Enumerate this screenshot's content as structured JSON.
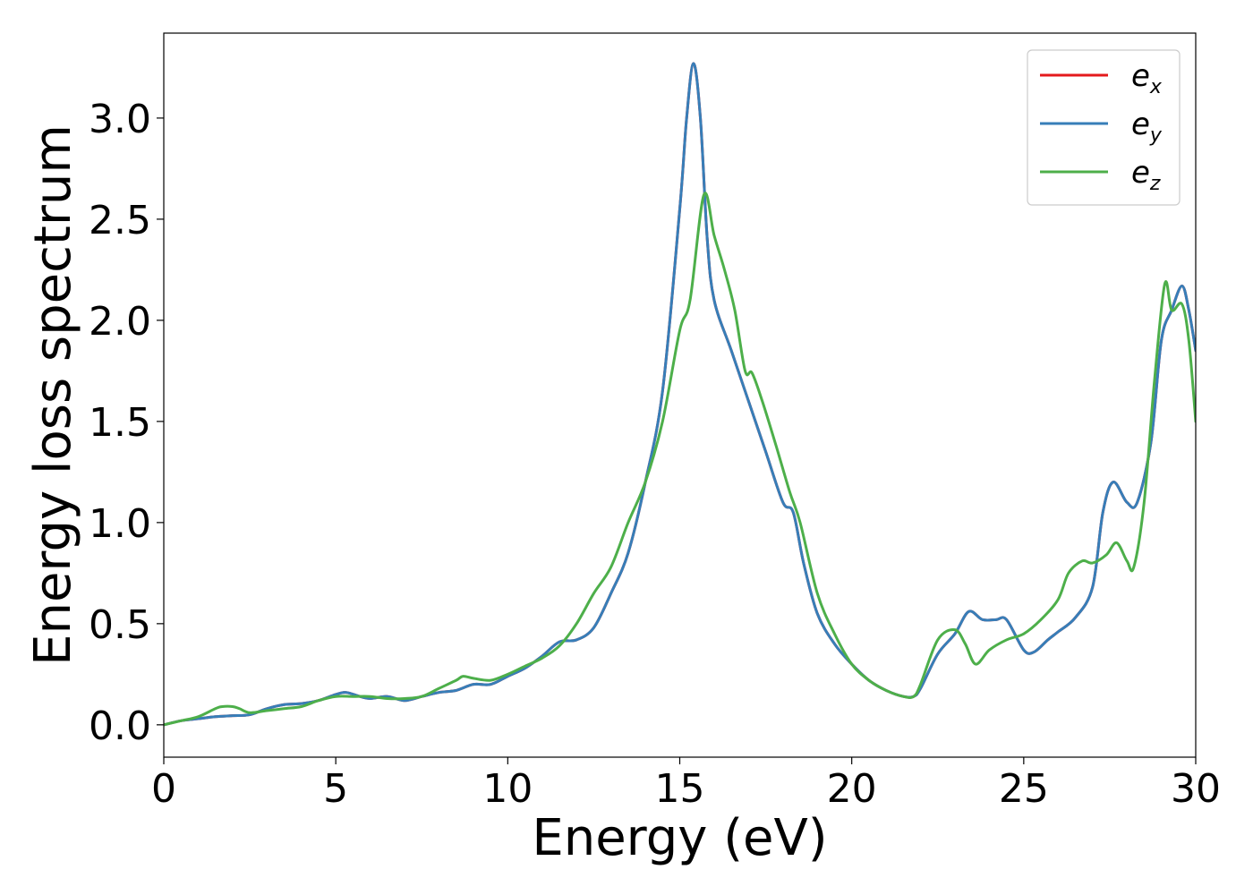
{
  "chart_data": {
    "type": "line",
    "title": "",
    "xlabel": "Energy (eV)",
    "ylabel": "Energy loss spectrum",
    "xlim": [
      0,
      30
    ],
    "ylim": [
      -0.16,
      3.42
    ],
    "xticks": [
      0,
      5,
      10,
      15,
      20,
      25,
      30
    ],
    "xtick_labels": [
      "0",
      "5",
      "10",
      "15",
      "20",
      "25",
      "30"
    ],
    "yticks": [
      0.0,
      0.5,
      1.0,
      1.5,
      2.0,
      2.5,
      3.0
    ],
    "ytick_labels": [
      "0.0",
      "0.5",
      "1.0",
      "1.5",
      "2.0",
      "2.5",
      "3.0"
    ],
    "grid": false,
    "legend_position": "top-right",
    "series": [
      {
        "name": "e_x",
        "legend_base": "e",
        "legend_sub": "x",
        "color": "#e41a1c",
        "x": [
          0,
          0.5,
          1,
          1.5,
          2,
          2.5,
          3,
          3.5,
          4,
          4.5,
          5,
          5.3,
          5.7,
          6,
          6.5,
          7,
          7.5,
          8,
          8.5,
          9,
          9.5,
          10,
          10.5,
          11,
          11.5,
          12,
          12.5,
          13,
          13.5,
          14,
          14.5,
          15,
          15.2,
          15.4,
          15.6,
          15.8,
          16,
          16.5,
          17,
          17.5,
          18,
          18.3,
          18.6,
          19,
          19.5,
          20,
          20.5,
          21,
          21.5,
          21.8,
          22,
          22.5,
          23,
          23.4,
          23.8,
          24.2,
          24.5,
          25,
          25.3,
          25.7,
          26,
          26.5,
          27,
          27.3,
          27.6,
          28,
          28.3,
          28.7,
          29,
          29.3,
          29.6,
          29.8,
          30
        ],
        "y": [
          0,
          0.02,
          0.03,
          0.04,
          0.045,
          0.05,
          0.08,
          0.1,
          0.105,
          0.12,
          0.15,
          0.16,
          0.14,
          0.13,
          0.14,
          0.12,
          0.14,
          0.16,
          0.17,
          0.2,
          0.2,
          0.24,
          0.28,
          0.34,
          0.41,
          0.42,
          0.48,
          0.65,
          0.85,
          1.2,
          1.65,
          2.55,
          3.0,
          3.27,
          3.0,
          2.4,
          2.1,
          1.85,
          1.6,
          1.35,
          1.1,
          1.05,
          0.8,
          0.55,
          0.4,
          0.3,
          0.22,
          0.17,
          0.14,
          0.14,
          0.18,
          0.35,
          0.45,
          0.56,
          0.52,
          0.52,
          0.52,
          0.37,
          0.36,
          0.42,
          0.46,
          0.53,
          0.68,
          1.05,
          1.2,
          1.1,
          1.1,
          1.4,
          1.9,
          2.05,
          2.17,
          2.05,
          1.85
        ]
      },
      {
        "name": "e_y",
        "legend_base": "e",
        "legend_sub": "y",
        "color": "#377eb8",
        "x": [
          0,
          0.5,
          1,
          1.5,
          2,
          2.5,
          3,
          3.5,
          4,
          4.5,
          5,
          5.3,
          5.7,
          6,
          6.5,
          7,
          7.5,
          8,
          8.5,
          9,
          9.5,
          10,
          10.5,
          11,
          11.5,
          12,
          12.5,
          13,
          13.5,
          14,
          14.5,
          15,
          15.2,
          15.4,
          15.6,
          15.8,
          16,
          16.5,
          17,
          17.5,
          18,
          18.3,
          18.6,
          19,
          19.5,
          20,
          20.5,
          21,
          21.5,
          21.8,
          22,
          22.5,
          23,
          23.4,
          23.8,
          24.2,
          24.5,
          25,
          25.3,
          25.7,
          26,
          26.5,
          27,
          27.3,
          27.6,
          28,
          28.3,
          28.7,
          29,
          29.3,
          29.6,
          29.8,
          30
        ],
        "y": [
          0,
          0.02,
          0.03,
          0.04,
          0.045,
          0.05,
          0.08,
          0.1,
          0.105,
          0.12,
          0.15,
          0.16,
          0.14,
          0.13,
          0.14,
          0.12,
          0.14,
          0.16,
          0.17,
          0.2,
          0.2,
          0.24,
          0.28,
          0.34,
          0.41,
          0.42,
          0.48,
          0.65,
          0.85,
          1.2,
          1.65,
          2.55,
          3.0,
          3.27,
          3.0,
          2.4,
          2.1,
          1.85,
          1.6,
          1.35,
          1.1,
          1.05,
          0.8,
          0.55,
          0.4,
          0.3,
          0.22,
          0.17,
          0.14,
          0.14,
          0.18,
          0.35,
          0.45,
          0.56,
          0.52,
          0.52,
          0.52,
          0.37,
          0.36,
          0.42,
          0.46,
          0.53,
          0.68,
          1.05,
          1.2,
          1.1,
          1.1,
          1.4,
          1.9,
          2.05,
          2.17,
          2.05,
          1.85
        ]
      },
      {
        "name": "e_z",
        "legend_base": "e",
        "legend_sub": "z",
        "color": "#4daf4a",
        "x": [
          0,
          0.5,
          1,
          1.5,
          1.7,
          2,
          2.2,
          2.5,
          3,
          3.5,
          4,
          4.5,
          5,
          5.5,
          6,
          6.5,
          7,
          7.5,
          8,
          8.5,
          8.7,
          9,
          9.5,
          10,
          10.5,
          11,
          11.5,
          12,
          12.5,
          13,
          13.5,
          14,
          14.5,
          15,
          15.3,
          15.7,
          16,
          16.3,
          16.6,
          16.9,
          17.1,
          17.4,
          17.8,
          18.2,
          18.5,
          19,
          19.5,
          20,
          20.5,
          21,
          21.5,
          21.8,
          22,
          22.5,
          23,
          23.3,
          23.6,
          24,
          24.5,
          25,
          25.5,
          26,
          26.3,
          26.7,
          27,
          27.4,
          27.7,
          28,
          28.2,
          28.5,
          28.8,
          29.1,
          29.3,
          29.6,
          29.8,
          30
        ],
        "y": [
          0,
          0.02,
          0.04,
          0.08,
          0.09,
          0.09,
          0.08,
          0.06,
          0.07,
          0.08,
          0.09,
          0.12,
          0.14,
          0.14,
          0.14,
          0.13,
          0.13,
          0.14,
          0.18,
          0.22,
          0.24,
          0.23,
          0.22,
          0.25,
          0.29,
          0.33,
          0.39,
          0.5,
          0.65,
          0.78,
          1.0,
          1.2,
          1.5,
          1.95,
          2.1,
          2.62,
          2.42,
          2.25,
          2.05,
          1.75,
          1.74,
          1.6,
          1.38,
          1.15,
          1.0,
          0.65,
          0.45,
          0.3,
          0.22,
          0.17,
          0.14,
          0.14,
          0.2,
          0.42,
          0.47,
          0.4,
          0.3,
          0.37,
          0.42,
          0.45,
          0.52,
          0.62,
          0.75,
          0.81,
          0.8,
          0.84,
          0.9,
          0.81,
          0.78,
          1.1,
          1.7,
          2.18,
          2.05,
          2.08,
          1.9,
          1.5
        ]
      }
    ]
  }
}
